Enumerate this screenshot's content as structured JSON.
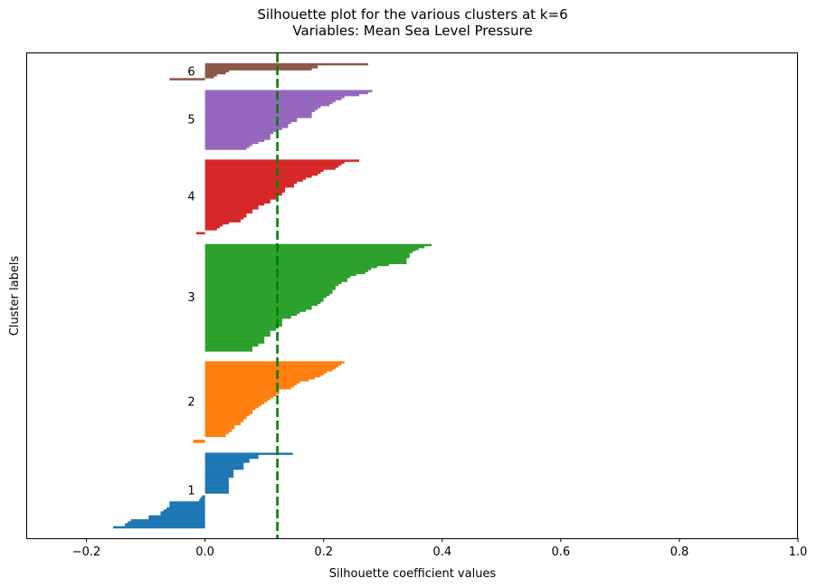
{
  "chart_data": {
    "type": "bar",
    "orientation": "horizontal",
    "title_line1": "Silhouette plot for the various clusters at k=6",
    "title_line2": "Variables: Mean Sea Level Pressure",
    "xlabel": "Silhouette coefficient values",
    "ylabel": "Cluster labels",
    "xlim": [
      -0.3,
      1.0
    ],
    "xticks": [
      "−0.2",
      "0.0",
      "0.2",
      "0.4",
      "0.6",
      "0.8",
      "1.0"
    ],
    "xtick_values": [
      -0.2,
      0.0,
      0.2,
      0.4,
      0.6,
      0.8,
      1.0
    ],
    "average_score": 0.122,
    "average_line_color": "#008000",
    "grid": false,
    "clusters": [
      {
        "label": "1",
        "color": "#1f77b4",
        "size": 76,
        "values": [
          0.148,
          0.148,
          0.09,
          0.09,
          0.09,
          0.09,
          0.075,
          0.075,
          0.075,
          0.075,
          0.065,
          0.065,
          0.065,
          0.065,
          0.065,
          0.065,
          0.065,
          0.048,
          0.048,
          0.048,
          0.048,
          0.048,
          0.048,
          0.048,
          0.048,
          0.04,
          0.04,
          0.04,
          0.04,
          0.04,
          0.04,
          0.04,
          0.04,
          0.04,
          0.04,
          0.04,
          0.04,
          0.04,
          0.04,
          0.04,
          0.04,
          0.0,
          0.0,
          -0.005,
          -0.005,
          -0.008,
          -0.008,
          -0.01,
          -0.01,
          -0.06,
          -0.06,
          -0.06,
          -0.06,
          -0.06,
          -0.06,
          -0.065,
          -0.065,
          -0.07,
          -0.07,
          -0.075,
          -0.075,
          -0.075,
          -0.075,
          -0.095,
          -0.095,
          -0.095,
          -0.095,
          -0.125,
          -0.125,
          -0.13,
          -0.13,
          -0.135,
          -0.135,
          -0.135,
          -0.155,
          -0.155
        ]
      },
      {
        "label": "2",
        "color": "#ff7f0e",
        "size": 82,
        "values": [
          0.235,
          0.235,
          0.23,
          0.23,
          0.225,
          0.225,
          0.22,
          0.22,
          0.215,
          0.215,
          0.205,
          0.205,
          0.2,
          0.2,
          0.195,
          0.195,
          0.185,
          0.185,
          0.175,
          0.175,
          0.16,
          0.16,
          0.155,
          0.155,
          0.15,
          0.15,
          0.145,
          0.145,
          0.125,
          0.125,
          0.125,
          0.125,
          0.125,
          0.12,
          0.12,
          0.115,
          0.115,
          0.11,
          0.11,
          0.105,
          0.105,
          0.1,
          0.1,
          0.095,
          0.095,
          0.09,
          0.09,
          0.085,
          0.085,
          0.08,
          0.08,
          0.08,
          0.08,
          0.075,
          0.075,
          0.07,
          0.07,
          0.07,
          0.065,
          0.065,
          0.065,
          0.06,
          0.06,
          0.06,
          0.05,
          0.05,
          0.05,
          0.05,
          0.045,
          0.045,
          0.045,
          0.04,
          0.04,
          0.035,
          0.035,
          0.035,
          0.0,
          0.0,
          0.0,
          -0.02,
          -0.02,
          -0.02
        ]
      },
      {
        "label": "3",
        "color": "#2ca02c",
        "size": 108,
        "values": [
          0.382,
          0.382,
          0.37,
          0.37,
          0.36,
          0.36,
          0.355,
          0.35,
          0.35,
          0.345,
          0.345,
          0.345,
          0.345,
          0.345,
          0.34,
          0.34,
          0.34,
          0.34,
          0.34,
          0.34,
          0.31,
          0.31,
          0.29,
          0.29,
          0.28,
          0.28,
          0.275,
          0.275,
          0.27,
          0.27,
          0.255,
          0.255,
          0.245,
          0.245,
          0.24,
          0.24,
          0.24,
          0.24,
          0.23,
          0.23,
          0.225,
          0.225,
          0.22,
          0.22,
          0.22,
          0.22,
          0.215,
          0.215,
          0.215,
          0.215,
          0.21,
          0.21,
          0.205,
          0.205,
          0.2,
          0.2,
          0.2,
          0.2,
          0.195,
          0.195,
          0.19,
          0.19,
          0.18,
          0.18,
          0.18,
          0.18,
          0.17,
          0.17,
          0.16,
          0.16,
          0.155,
          0.155,
          0.145,
          0.145,
          0.145,
          0.13,
          0.13,
          0.13,
          0.13,
          0.13,
          0.13,
          0.13,
          0.13,
          0.12,
          0.12,
          0.12,
          0.12,
          0.11,
          0.11,
          0.11,
          0.11,
          0.11,
          0.11,
          0.1,
          0.1,
          0.1,
          0.1,
          0.1,
          0.1,
          0.1,
          0.09,
          0.09,
          0.09,
          0.08,
          0.08,
          0.08,
          0.08,
          0.08
        ]
      },
      {
        "label": "4",
        "color": "#d62728",
        "size": 75,
        "values": [
          0.26,
          0.26,
          0.235,
          0.235,
          0.23,
          0.23,
          0.225,
          0.225,
          0.22,
          0.22,
          0.2,
          0.2,
          0.195,
          0.195,
          0.19,
          0.19,
          0.18,
          0.18,
          0.17,
          0.17,
          0.165,
          0.165,
          0.155,
          0.155,
          0.15,
          0.15,
          0.15,
          0.15,
          0.135,
          0.135,
          0.135,
          0.135,
          0.135,
          0.13,
          0.13,
          0.13,
          0.12,
          0.12,
          0.12,
          0.12,
          0.11,
          0.11,
          0.11,
          0.11,
          0.1,
          0.1,
          0.09,
          0.09,
          0.09,
          0.09,
          0.08,
          0.08,
          0.08,
          0.08,
          0.07,
          0.07,
          0.07,
          0.07,
          0.065,
          0.065,
          0.06,
          0.06,
          0.06,
          0.04,
          0.04,
          0.03,
          0.03,
          0.025,
          0.025,
          0.02,
          0.02,
          0.0,
          0.0,
          -0.015,
          -0.015
        ]
      },
      {
        "label": "5",
        "color": "#9467bd",
        "size": 60,
        "values": [
          0.282,
          0.282,
          0.275,
          0.275,
          0.26,
          0.26,
          0.235,
          0.235,
          0.23,
          0.23,
          0.22,
          0.22,
          0.215,
          0.215,
          0.21,
          0.21,
          0.195,
          0.195,
          0.19,
          0.19,
          0.185,
          0.185,
          0.18,
          0.18,
          0.18,
          0.18,
          0.18,
          0.18,
          0.155,
          0.155,
          0.155,
          0.155,
          0.145,
          0.145,
          0.14,
          0.14,
          0.14,
          0.14,
          0.13,
          0.13,
          0.12,
          0.12,
          0.115,
          0.115,
          0.11,
          0.11,
          0.11,
          0.11,
          0.11,
          0.11,
          0.1,
          0.1,
          0.09,
          0.09,
          0.08,
          0.08,
          0.075,
          0.075,
          0.07,
          0.07
        ]
      },
      {
        "label": "6",
        "color": "#8c564b",
        "size": 17,
        "values": [
          0.275,
          0.275,
          0.19,
          0.19,
          0.19,
          0.18,
          0.18,
          0.04,
          0.04,
          0.035,
          0.035,
          0.02,
          0.02,
          0.015,
          0.015,
          -0.06,
          -0.06
        ]
      }
    ]
  }
}
